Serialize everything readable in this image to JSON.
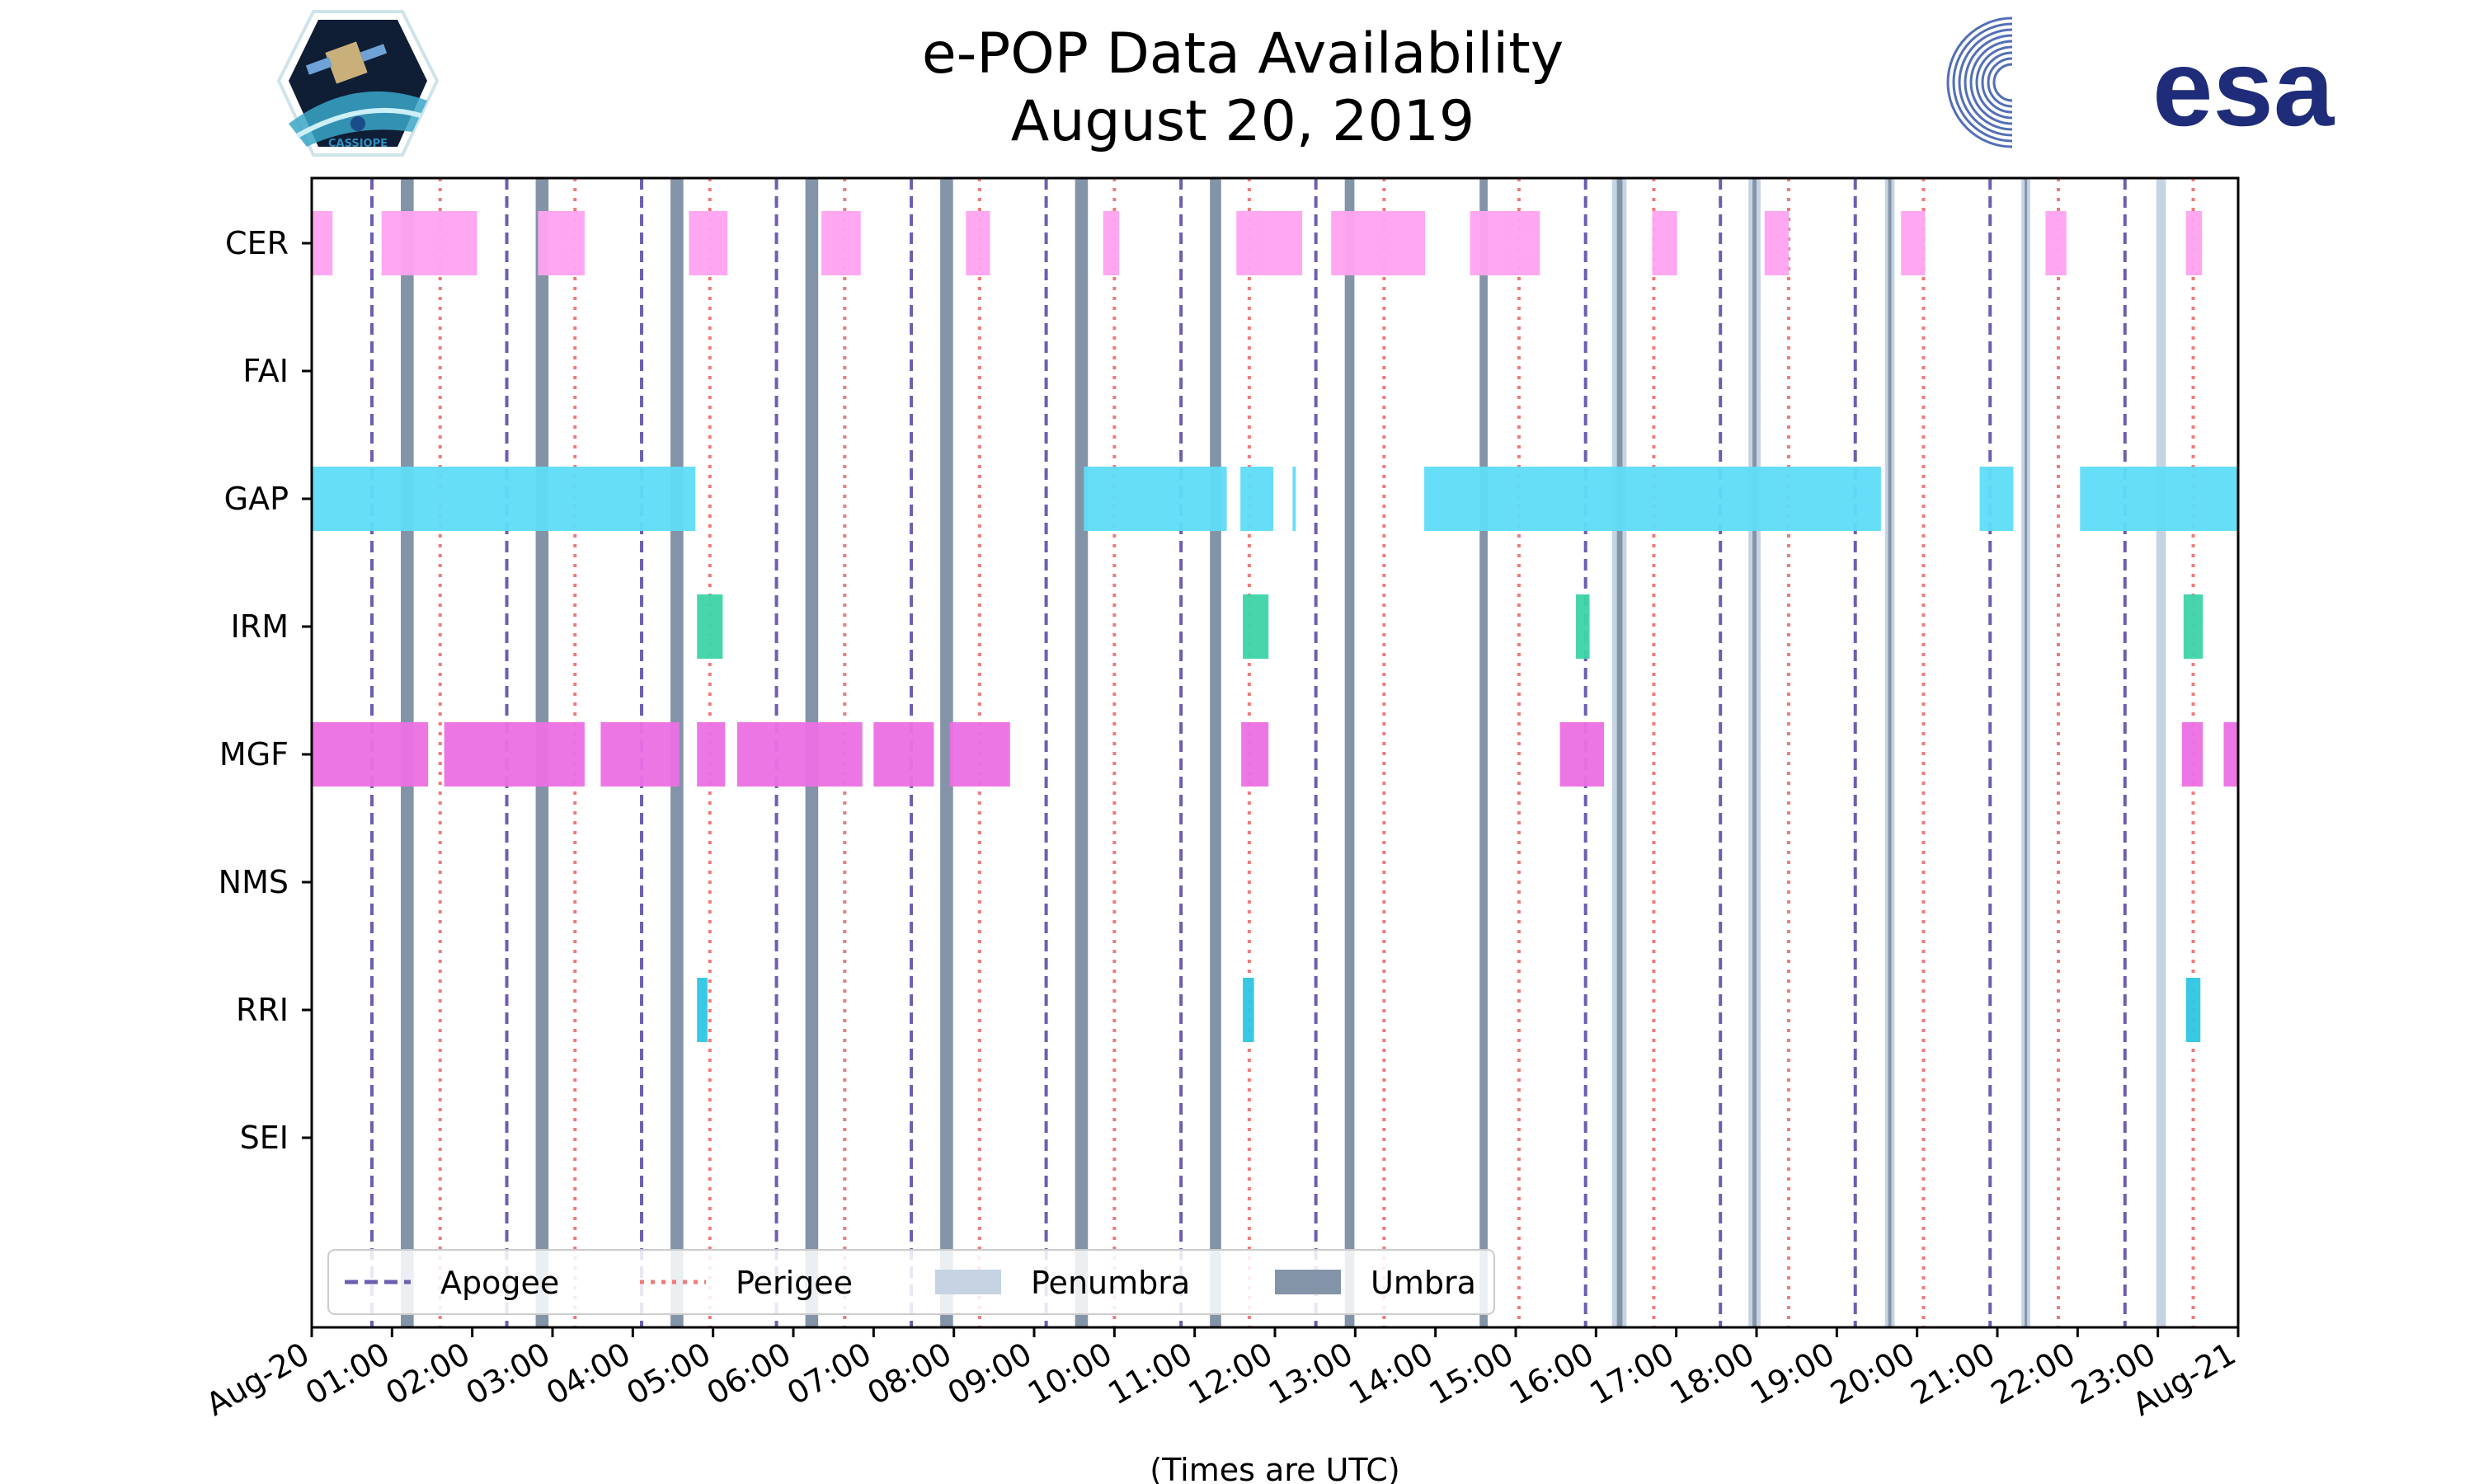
{
  "logos": {
    "left_logo_text": "CASSIOPE",
    "right_logo_text": "esa"
  },
  "colors": {
    "apogee": "#6a5fb0",
    "perigee": "#f07a7a",
    "penumbra": "#c5d3e3",
    "umbra": "#8394a8",
    "CER": "#ffa3f0",
    "GAP": "#5fdcf7",
    "IRM": "#3dd4a8",
    "MGF": "#ec6fe4",
    "RRI": "#2ec6e4"
  },
  "chart_data": {
    "type": "timeline",
    "title": "e-POP Data Availability",
    "subtitle": "August 20, 2019",
    "xlabel": "(Times are UTC)",
    "xlim_hours": [
      0,
      24
    ],
    "x_tick_labels": [
      "Aug-20",
      "01:00",
      "02:00",
      "03:00",
      "04:00",
      "05:00",
      "06:00",
      "07:00",
      "08:00",
      "09:00",
      "10:00",
      "11:00",
      "12:00",
      "13:00",
      "14:00",
      "15:00",
      "16:00",
      "17:00",
      "18:00",
      "19:00",
      "20:00",
      "21:00",
      "22:00",
      "23:00",
      "Aug-21"
    ],
    "instruments": [
      "CER",
      "FAI",
      "GAP",
      "IRM",
      "MGF",
      "NMS",
      "RRI",
      "SEI"
    ],
    "apogee_hours": [
      0.75,
      2.43,
      4.11,
      5.79,
      7.47,
      9.15,
      10.83,
      12.51,
      15.87,
      17.55,
      19.23,
      20.91,
      22.59
    ],
    "perigee_hours": [
      1.6,
      3.28,
      4.96,
      6.64,
      8.32,
      10.0,
      11.68,
      13.36,
      15.04,
      16.72,
      18.4,
      20.08,
      21.76,
      23.44
    ],
    "umbra_intervals": [
      [
        1.11,
        1.27
      ],
      [
        2.79,
        2.95
      ],
      [
        4.47,
        4.63
      ],
      [
        6.15,
        6.31
      ],
      [
        7.83,
        7.99
      ],
      [
        9.51,
        9.67
      ],
      [
        11.19,
        11.33
      ],
      [
        12.87,
        12.99
      ],
      [
        14.55,
        14.65
      ],
      [
        16.26,
        16.33
      ],
      [
        17.95,
        18.0
      ],
      [
        19.64,
        19.68
      ],
      [
        21.34,
        21.37
      ]
    ],
    "penumbra_intervals": [
      [
        16.2,
        16.38
      ],
      [
        17.9,
        18.05
      ],
      [
        19.6,
        19.72
      ],
      [
        21.3,
        21.41
      ],
      [
        22.98,
        23.1
      ]
    ],
    "legend": [
      "Apogee",
      "Perigee",
      "Penumbra",
      "Umbra"
    ],
    "bars": {
      "CER": [
        [
          0.0,
          0.26
        ],
        [
          0.87,
          2.06
        ],
        [
          2.82,
          3.4
        ],
        [
          4.7,
          5.18
        ],
        [
          6.35,
          6.84
        ],
        [
          8.15,
          8.45
        ],
        [
          9.86,
          10.06
        ],
        [
          11.52,
          12.34
        ],
        [
          12.7,
          13.87
        ],
        [
          14.43,
          15.3
        ],
        [
          16.7,
          17.01
        ],
        [
          18.1,
          18.4
        ],
        [
          19.8,
          20.1
        ],
        [
          21.6,
          21.86
        ],
        [
          23.35,
          23.55
        ]
      ],
      "FAI": [],
      "GAP": [
        [
          0.0,
          4.78
        ],
        [
          9.62,
          11.4
        ],
        [
          11.57,
          11.98
        ],
        [
          12.22,
          12.26
        ],
        [
          13.86,
          19.55
        ],
        [
          20.78,
          21.2
        ],
        [
          22.03,
          24.0
        ]
      ],
      "IRM": [
        [
          4.8,
          5.12
        ],
        [
          11.6,
          11.92
        ],
        [
          15.75,
          15.92
        ],
        [
          23.32,
          23.56
        ]
      ],
      "MGF": [
        [
          0.0,
          1.45
        ],
        [
          1.65,
          3.4
        ],
        [
          3.6,
          4.58
        ],
        [
          4.8,
          5.15
        ],
        [
          5.3,
          6.86
        ],
        [
          7.0,
          7.75
        ],
        [
          7.95,
          8.7
        ],
        [
          11.58,
          11.92
        ],
        [
          15.55,
          16.1
        ],
        [
          23.3,
          23.56
        ],
        [
          23.82,
          24.0
        ]
      ],
      "NMS": [],
      "RRI": [
        [
          4.8,
          4.93
        ],
        [
          11.6,
          11.74
        ],
        [
          23.35,
          23.53
        ]
      ],
      "SEI": []
    }
  }
}
